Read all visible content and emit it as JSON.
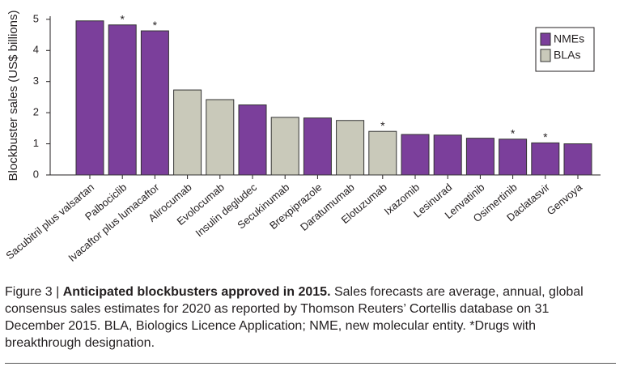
{
  "chart_data": {
    "type": "bar",
    "y_label": "Blockbuster sales (US$ billions)",
    "categories": [
      "Sacubitril plus valsartan",
      "Palbociclib",
      "Ivacaftor plus lumacaftor",
      "Alirocumab",
      "Evolocumab",
      "Insulin degludec",
      "Secukinumab",
      "Brexpiprazole",
      "Daratumumab",
      "Elotuzumab",
      "Ixazomib",
      "Lesinurad",
      "Lenvatinib",
      "Osimertinib",
      "Daclatasvir",
      "Genvoya"
    ],
    "series": [
      {
        "name": "NMEs",
        "color": "#7b3f9b",
        "values": [
          4.95,
          4.82,
          4.63,
          null,
          null,
          2.25,
          null,
          1.83,
          null,
          null,
          1.3,
          1.28,
          1.18,
          1.15,
          1.03,
          1.0
        ]
      },
      {
        "name": "BLAs",
        "color": "#c9c9ba",
        "values": [
          null,
          null,
          null,
          2.73,
          2.42,
          null,
          1.85,
          null,
          1.75,
          1.4,
          null,
          null,
          null,
          null,
          null,
          null
        ]
      }
    ],
    "annotations": [
      {
        "category": "Palbociclib",
        "text": "*"
      },
      {
        "category": "Ivacaftor plus lumacaftor",
        "text": "*"
      },
      {
        "category": "Elotuzumab",
        "text": "*"
      },
      {
        "category": "Osimertinib",
        "text": "*"
      },
      {
        "category": "Daclatasvir",
        "text": "*"
      }
    ],
    "ylim": [
      0,
      5.1
    ],
    "yticks": [
      0,
      1,
      2,
      3,
      4,
      5
    ],
    "grid": false,
    "legend": "upper right"
  },
  "caption": {
    "label": "Figure 3 | ",
    "heading": "Anticipated blockbusters approved in 2015.",
    "text": " Sales forecasts are average, annual, global consensus sales estimates for 2020 as reported by Thomson Reuters’ Cortellis database on 31 December 2015. BLA, Biologics Licence Application; NME, new molecular entity. *Drugs with breakthrough designation."
  }
}
